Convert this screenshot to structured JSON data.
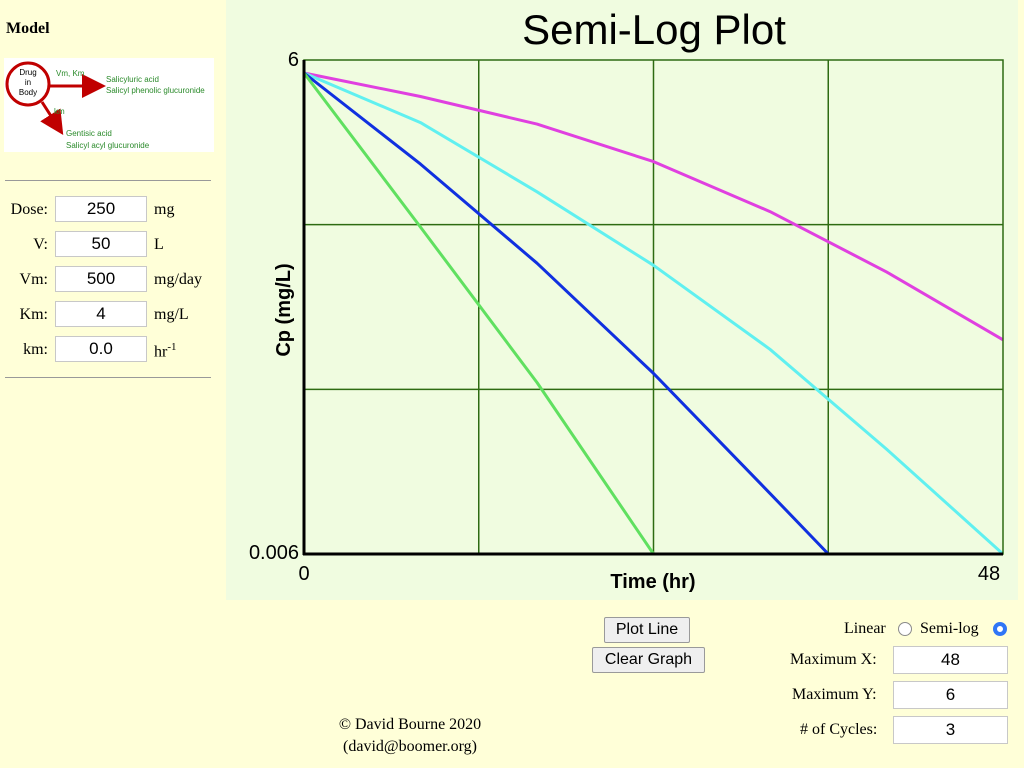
{
  "sidebar": {
    "model_title": "Model",
    "diagram": {
      "circle_text": [
        "Drug",
        "in",
        "Body"
      ],
      "pathway1_label": "Vm, Km",
      "pathway1_products": [
        "Salicyluric acid",
        "Salicyl phenolic glucuronide"
      ],
      "pathway2_label": "km",
      "pathway2_products": [
        "Gentisic acid",
        "Salicyl acyl glucuronide"
      ]
    },
    "params": [
      {
        "label": "Dose:",
        "value": "250",
        "unit": "mg"
      },
      {
        "label": "V:",
        "value": "50",
        "unit": "L"
      },
      {
        "label": "Vm:",
        "value": "500",
        "unit": "mg/day"
      },
      {
        "label": "Km:",
        "value": "4",
        "unit": "mg/L"
      },
      {
        "label": "km:",
        "value": "0.0",
        "unit": "hr",
        "unit_sup": "-1"
      }
    ]
  },
  "controls": {
    "plot_button": "Plot Line",
    "clear_button": "Clear Graph",
    "linear_label": "Linear",
    "semilog_label": "Semi-log",
    "selected_scale": "semi-log",
    "max_x_label": "Maximum X:",
    "max_x_value": "48",
    "max_y_label": "Maximum Y:",
    "max_y_value": "6",
    "cycles_label": "# of Cycles:",
    "cycles_value": "3"
  },
  "credit": {
    "line1": "© David Bourne 2020",
    "line2": "(david@boomer.org)"
  },
  "colors": {
    "background": "#ffffd8",
    "chart_background": "#f0fce0",
    "grid": "#2e6b12",
    "diagram_accent": "#c00000",
    "diagram_text": "#2a8a2a"
  },
  "chart_data": {
    "type": "line",
    "title": "Semi-Log Plot",
    "xlabel": "Time (hr)",
    "ylabel": "Cp (mg/L)",
    "xlim": [
      0,
      48
    ],
    "ylim": [
      0.006,
      6
    ],
    "yscale": "log",
    "cycles": 3,
    "x_tick_labels": [
      "0",
      "48"
    ],
    "y_tick_labels": [
      "0.006",
      "6"
    ],
    "grid": true,
    "series": [
      {
        "color": "#e040e0",
        "x": [
          0,
          8,
          16,
          24,
          32,
          40,
          48
        ],
        "y": [
          5.0,
          3.6,
          2.45,
          1.45,
          0.72,
          0.31,
          0.12
        ]
      },
      {
        "color": "#60f0f0",
        "x": [
          0,
          8,
          16,
          24,
          32,
          40,
          48
        ],
        "y": [
          5.0,
          2.5,
          0.95,
          0.34,
          0.105,
          0.026,
          0.006
        ]
      },
      {
        "color": "#1030e0",
        "x": [
          0,
          8,
          16,
          24,
          32,
          36,
          48
        ],
        "y": [
          5.0,
          1.4,
          0.35,
          0.075,
          0.014,
          0.006,
          0.006
        ]
      },
      {
        "color": "#60e060",
        "x": [
          0,
          8,
          16,
          24,
          48
        ],
        "y": [
          5.0,
          0.58,
          0.066,
          0.006,
          0.006
        ]
      }
    ]
  }
}
